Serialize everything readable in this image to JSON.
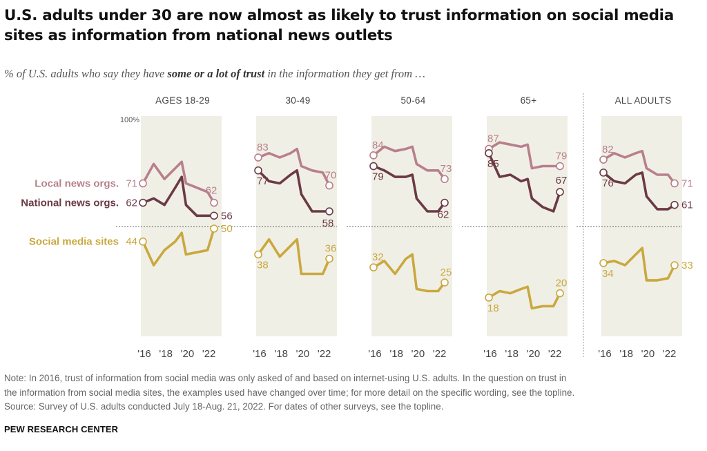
{
  "title": "U.S. adults under 30 are now almost as likely to trust information on social media sites as information from national news outlets",
  "subtitle_pre": "% of U.S. adults who say they have ",
  "subtitle_bold": "some or a lot of trust",
  "subtitle_post": " in the information they get from …",
  "notes": {
    "note_line1": "Note: In 2016, trust of information from social media was only asked of and based on internet-using U.S. adults. In the question on trust in",
    "note_line2": "the information from social media sites, the examples used have changed over time; for more detail on the specific wording, see the topline.",
    "source": "Source: Survey of U.S. adults conducted July 18-Aug. 21, 2022. For dates of other surveys, see the topline."
  },
  "brand": "PEW RESEARCH CENTER",
  "colors": {
    "local": "#b87f8c",
    "national": "#6b3a45",
    "social": "#c9a83e",
    "panel_bg": "#f0efe6",
    "divider": "#999999"
  },
  "chart_data": {
    "type": "line",
    "y_axis_top_label": "100%",
    "ylim": [
      0,
      100
    ],
    "x_tick_labels": [
      "'16",
      "'18",
      "'20",
      "'22"
    ],
    "series_names": [
      "Local news orgs.",
      "National news orgs.",
      "Social media sites"
    ],
    "panels": [
      {
        "label": "AGES 18-29",
        "series": [
          {
            "name": "Local news orgs.",
            "x": [
              2016,
              2017,
              2018,
              2019,
              2019.6,
              2020,
              2021,
              2022,
              2022.6
            ],
            "values": [
              71,
              80,
              73,
              78,
              81,
              71,
              69,
              67,
              62
            ]
          },
          {
            "name": "National news orgs.",
            "x": [
              2016,
              2017,
              2018,
              2019,
              2019.6,
              2020,
              2021,
              2022,
              2022.6
            ],
            "values": [
              62,
              64,
              61,
              69,
              74,
              61,
              56,
              56,
              56
            ]
          },
          {
            "name": "Social media sites",
            "x": [
              2016,
              2017,
              2018,
              2019,
              2019.6,
              2020,
              2021,
              2022,
              2022.6
            ],
            "values": [
              44,
              33,
              40,
              44,
              48,
              38,
              39,
              40,
              50
            ]
          }
        ],
        "labels": {
          "start": [
            "71",
            "62",
            "44"
          ],
          "end": [
            "62",
            "56",
            "50"
          ]
        }
      },
      {
        "label": "30-49",
        "series": [
          {
            "name": "Local news orgs.",
            "x": [
              2016,
              2017,
              2018,
              2019,
              2019.6,
              2020,
              2021,
              2022,
              2022.6
            ],
            "values": [
              83,
              85,
              83,
              85,
              87,
              79,
              77,
              76,
              70
            ]
          },
          {
            "name": "National news orgs.",
            "x": [
              2016,
              2017,
              2018,
              2019,
              2019.6,
              2020,
              2021,
              2022,
              2022.6
            ],
            "values": [
              77,
              72,
              71,
              75,
              77,
              66,
              58,
              58,
              58
            ]
          },
          {
            "name": "Social media sites",
            "x": [
              2016,
              2017,
              2018,
              2019,
              2019.6,
              2020,
              2021,
              2022,
              2022.6
            ],
            "values": [
              38,
              45,
              37,
              42,
              45,
              29,
              29,
              29,
              36
            ]
          }
        ],
        "labels": {
          "start": [
            "83",
            "77",
            "38"
          ],
          "end": [
            "70",
            "58",
            "36"
          ]
        }
      },
      {
        "label": "50-64",
        "series": [
          {
            "name": "Local news orgs.",
            "x": [
              2016,
              2017,
              2018,
              2019,
              2019.6,
              2020,
              2021,
              2022,
              2022.6
            ],
            "values": [
              84,
              88,
              86,
              87,
              88,
              80,
              77,
              77,
              73
            ]
          },
          {
            "name": "National news orgs.",
            "x": [
              2016,
              2017,
              2018,
              2019,
              2019.6,
              2020,
              2021,
              2022,
              2022.6
            ],
            "values": [
              79,
              77,
              74,
              74,
              75,
              64,
              58,
              58,
              62
            ]
          },
          {
            "name": "Social media sites",
            "x": [
              2016,
              2017,
              2018,
              2019,
              2019.6,
              2020,
              2021,
              2022,
              2022.6
            ],
            "values": [
              32,
              35,
              29,
              36,
              38,
              22,
              21,
              21,
              25
            ]
          }
        ],
        "labels": {
          "start": [
            "84",
            "79",
            "32"
          ],
          "end": [
            "73",
            "62",
            "25"
          ]
        }
      },
      {
        "label": "65+",
        "series": [
          {
            "name": "Local news orgs.",
            "x": [
              2016,
              2017,
              2018,
              2019,
              2019.6,
              2020,
              2021,
              2022,
              2022.6
            ],
            "values": [
              87,
              90,
              89,
              88,
              89,
              78,
              79,
              79,
              79
            ]
          },
          {
            "name": "National news orgs.",
            "x": [
              2016,
              2017,
              2018,
              2019,
              2019.6,
              2020,
              2021,
              2022,
              2022.6
            ],
            "values": [
              85,
              74,
              75,
              72,
              73,
              64,
              60,
              58,
              67
            ]
          },
          {
            "name": "Social media sites",
            "x": [
              2016,
              2017,
              2018,
              2019,
              2019.6,
              2020,
              2021,
              2022,
              2022.6
            ],
            "values": [
              18,
              21,
              20,
              22,
              23,
              13,
              14,
              14,
              20
            ]
          }
        ],
        "labels": {
          "start": [
            "87",
            "85",
            "18"
          ],
          "end": [
            "79",
            "67",
            "20"
          ]
        }
      },
      {
        "label": "ALL ADULTS",
        "series": [
          {
            "name": "Local news orgs.",
            "x": [
              2016,
              2017,
              2018,
              2019,
              2019.6,
              2020,
              2021,
              2022,
              2022.6
            ],
            "values": [
              82,
              85,
              83,
              85,
              86,
              78,
              75,
              75,
              71
            ]
          },
          {
            "name": "National news orgs.",
            "x": [
              2016,
              2017,
              2018,
              2019,
              2019.6,
              2020,
              2021,
              2022,
              2022.6
            ],
            "values": [
              76,
              72,
              71,
              75,
              76,
              65,
              59,
              59,
              61
            ]
          },
          {
            "name": "Social media sites",
            "x": [
              2016,
              2017,
              2018,
              2019,
              2019.6,
              2020,
              2021,
              2022,
              2022.6
            ],
            "values": [
              34,
              35,
              33,
              38,
              41,
              26,
              26,
              27,
              33
            ]
          }
        ],
        "labels": {
          "start": [
            "82",
            "76",
            "34"
          ],
          "end": [
            "71",
            "61",
            "33"
          ]
        }
      }
    ]
  }
}
